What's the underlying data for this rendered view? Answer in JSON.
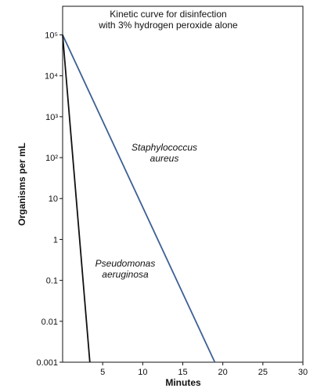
{
  "chart_data": {
    "type": "line",
    "title": "Kinetic curve for disinfection with 3% hydrogen peroxide alone",
    "xlabel": "Minutes",
    "ylabel": "Organisms per mL",
    "log_y": true,
    "xlim": [
      0,
      30
    ],
    "xticks": [
      5,
      10,
      15,
      20,
      25,
      30
    ],
    "ylim": [
      0.001,
      500000
    ],
    "yticks": [
      0.001,
      0.01,
      0.1,
      1,
      10,
      {
        "value": 100,
        "label": "10²"
      },
      {
        "value": 1000,
        "label": "10³"
      },
      {
        "value": 10000,
        "label": "10⁴"
      },
      {
        "value": 100000,
        "label": "10⁵"
      }
    ],
    "series": [
      {
        "name": "Staphylococcus aureus",
        "color": "#3d5f94",
        "x": [
          0,
          19
        ],
        "values": [
          100000,
          0.001
        ]
      },
      {
        "name": "Pseudomonas aeruginosa",
        "color": "#111111",
        "x": [
          0,
          3.4
        ],
        "values": [
          100000,
          0.001
        ]
      }
    ]
  }
}
